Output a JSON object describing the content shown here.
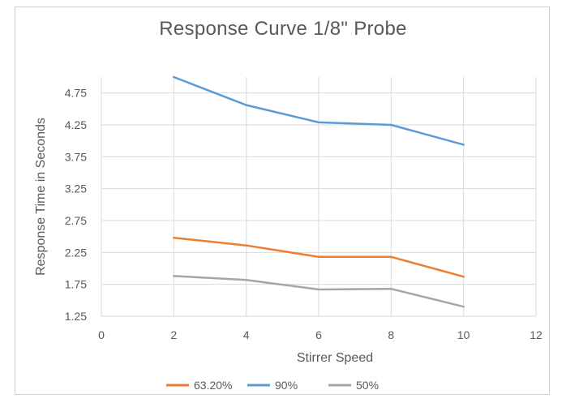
{
  "chart_data": {
    "type": "line",
    "title": "Response Curve 1/8\" Probe",
    "xlabel": "Stirrer Speed",
    "ylabel": "Response Time in Seconds",
    "xlim": [
      0,
      12
    ],
    "ylim": [
      1.25,
      5.0
    ],
    "x_ticks": [
      "0",
      "2",
      "4",
      "6",
      "8",
      "10",
      "12"
    ],
    "y_ticks": [
      "1.25",
      "1.75",
      "2.25",
      "2.75",
      "3.25",
      "3.75",
      "4.25",
      "4.75"
    ],
    "grid": "vertical and horizontal",
    "legend_position": "bottom",
    "x": [
      2,
      4,
      6,
      8,
      10
    ],
    "series": [
      {
        "name": "63.20%",
        "color": "#ED7D31",
        "values": [
          2.48,
          2.36,
          2.18,
          2.18,
          1.87
        ]
      },
      {
        "name": "90%",
        "color": "#5B9BD5",
        "values": [
          5.0,
          4.56,
          4.29,
          4.25,
          3.94
        ]
      },
      {
        "name": "50%",
        "color": "#A5A5A5",
        "values": [
          1.88,
          1.82,
          1.67,
          1.68,
          1.4
        ]
      }
    ]
  }
}
